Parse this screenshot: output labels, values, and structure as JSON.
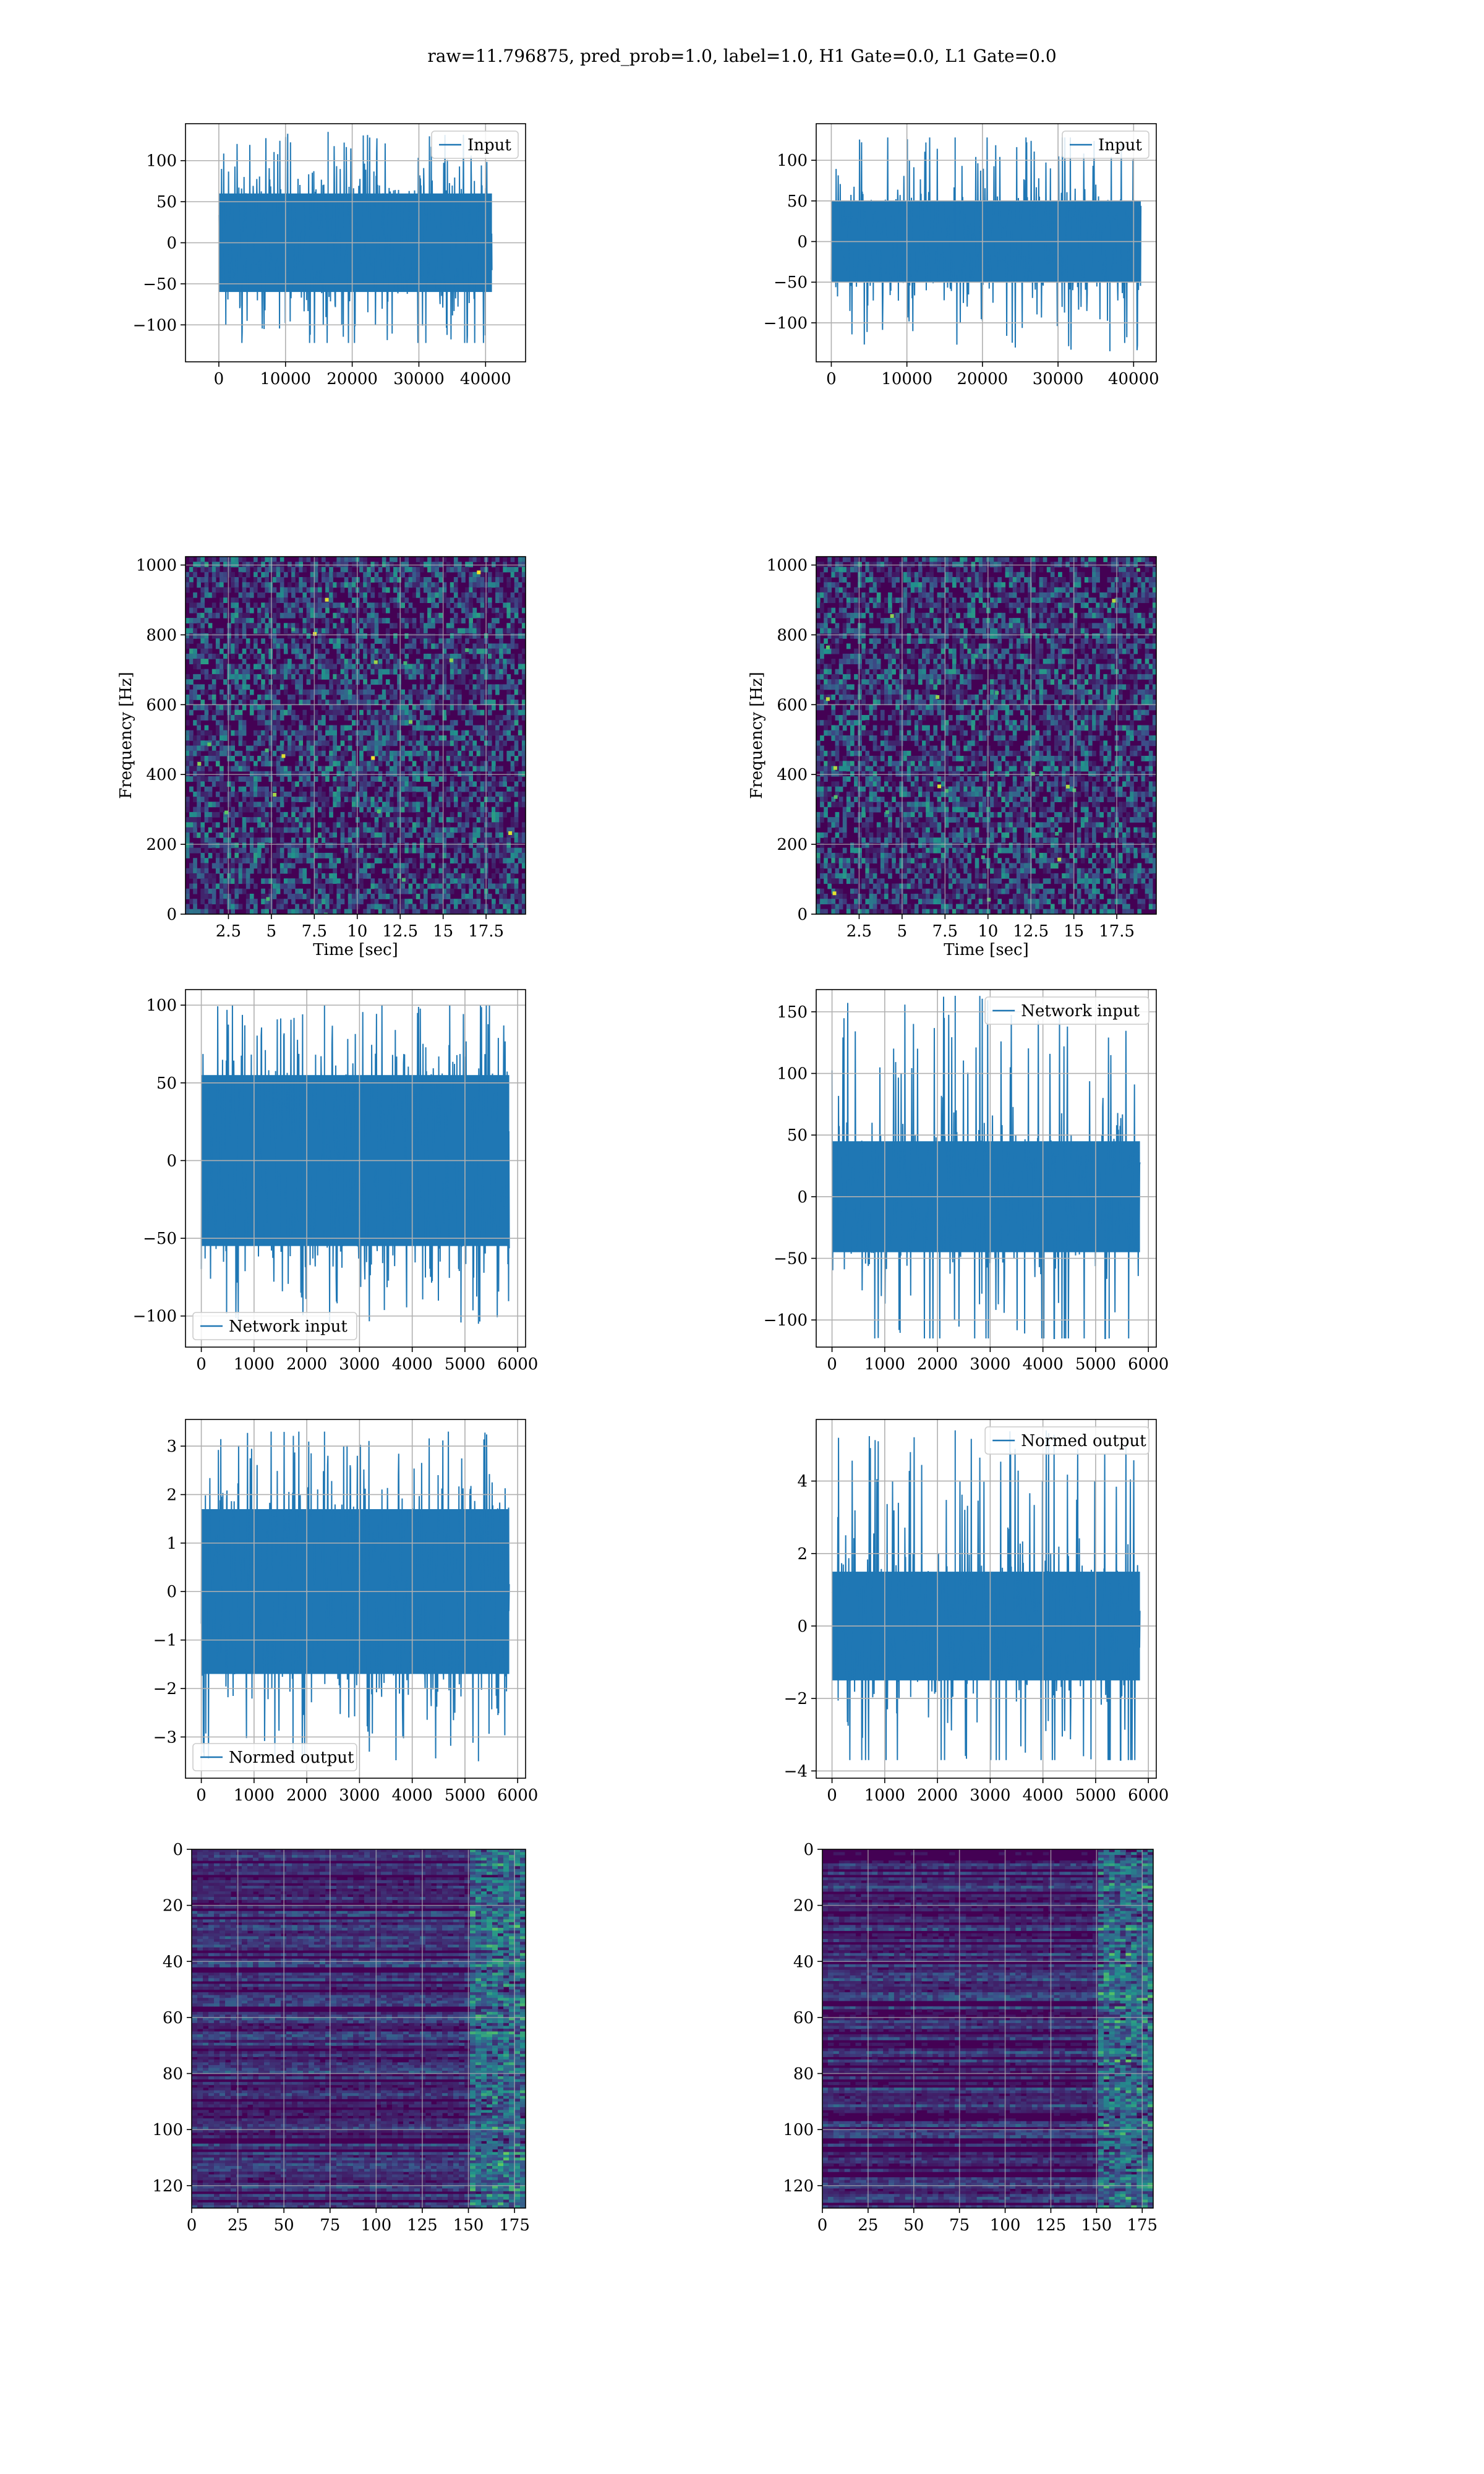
{
  "figure": {
    "title": "raw=11.796875, pred_prob=1.0, label=1.0, H1 Gate=0.0, L1 Gate=0.0"
  },
  "colors": {
    "series": "#1f77b4",
    "grid": "#b0b0b0",
    "viridis_low": "#440154",
    "viridis_high": "#fde725"
  },
  "chart_data": [
    {
      "type": "line",
      "panel": "r1c1",
      "xlim": [
        -5000,
        46000
      ],
      "ylim": [
        -145,
        145
      ],
      "xticks": [
        0,
        10000,
        20000,
        30000,
        40000
      ],
      "yticks": [
        -100,
        -50,
        0,
        50,
        100
      ],
      "legend": {
        "text": "Input",
        "loc": "upper right"
      },
      "series": [
        {
          "name": "Input",
          "x_range": [
            0,
            40960
          ],
          "y_core": [
            -60,
            60
          ],
          "y_peak": [
            -122,
            135
          ]
        }
      ]
    },
    {
      "type": "line",
      "panel": "r1c2",
      "xlim": [
        -2000,
        43000
      ],
      "ylim": [
        -148,
        145
      ],
      "xticks": [
        0,
        10000,
        20000,
        30000,
        40000
      ],
      "yticks": [
        -100,
        -50,
        0,
        50,
        100
      ],
      "legend": {
        "text": "Input",
        "loc": "upper right"
      },
      "series": [
        {
          "name": "Input",
          "x_range": [
            0,
            40960
          ],
          "y_core": [
            -50,
            50
          ],
          "y_peak": [
            -135,
            128
          ]
        }
      ]
    },
    {
      "type": "heatmap",
      "panel": "r2c1",
      "xlim": [
        0,
        19.8
      ],
      "ylim": [
        0,
        1024
      ],
      "xticks": [
        2.5,
        5.0,
        7.5,
        10.0,
        12.5,
        15.0,
        17.5
      ],
      "yticks": [
        0,
        200,
        400,
        600,
        800,
        1000
      ],
      "xlabel": "Time [sec]",
      "ylabel": "Frequency [Hz]"
    },
    {
      "type": "heatmap",
      "panel": "r2c2",
      "xlim": [
        0,
        19.8
      ],
      "ylim": [
        0,
        1024
      ],
      "xticks": [
        2.5,
        5.0,
        7.5,
        10.0,
        12.5,
        15.0,
        17.5
      ],
      "yticks": [
        0,
        200,
        400,
        600,
        800,
        1000
      ],
      "xlabel": "Time [sec]",
      "ylabel": "Frequency [Hz]"
    },
    {
      "type": "line",
      "panel": "r3c1",
      "xlim": [
        -300,
        6150
      ],
      "ylim": [
        -120,
        110
      ],
      "xticks": [
        0,
        1000,
        2000,
        3000,
        4000,
        5000,
        6000
      ],
      "yticks": [
        -100,
        -50,
        0,
        50,
        100
      ],
      "legend": {
        "text": "Network input",
        "loc": "lower left"
      },
      "series": [
        {
          "name": "Network input",
          "x_range": [
            0,
            5840
          ],
          "y_core": [
            -55,
            55
          ],
          "y_peak": [
            -105,
            100
          ]
        }
      ]
    },
    {
      "type": "line",
      "panel": "r3c2",
      "xlim": [
        -300,
        6150
      ],
      "ylim": [
        -122,
        168
      ],
      "xticks": [
        0,
        1000,
        2000,
        3000,
        4000,
        5000,
        6000
      ],
      "yticks": [
        -100,
        -50,
        0,
        50,
        100,
        150
      ],
      "legend": {
        "text": "Network input",
        "loc": "upper right"
      },
      "series": [
        {
          "name": "Network input",
          "x_range": [
            0,
            5840
          ],
          "y_core": [
            -45,
            45
          ],
          "y_peak": [
            -115,
            163
          ]
        }
      ]
    },
    {
      "type": "line",
      "panel": "r4c1",
      "xlim": [
        -300,
        6150
      ],
      "ylim": [
        -3.85,
        3.55
      ],
      "xticks": [
        0,
        1000,
        2000,
        3000,
        4000,
        5000,
        6000
      ],
      "yticks": [
        -3,
        -2,
        -1,
        0,
        1,
        2,
        3
      ],
      "legend": {
        "text": "Normed output",
        "loc": "lower left"
      },
      "series": [
        {
          "name": "Normed output",
          "x_range": [
            0,
            5840
          ],
          "y_core": [
            -1.7,
            1.7
          ],
          "y_peak": [
            -3.5,
            3.3
          ]
        }
      ]
    },
    {
      "type": "line",
      "panel": "r4c2",
      "xlim": [
        -300,
        6150
      ],
      "ylim": [
        -4.2,
        5.7
      ],
      "xticks": [
        0,
        1000,
        2000,
        3000,
        4000,
        5000,
        6000
      ],
      "yticks": [
        -4,
        -2,
        0,
        2,
        4
      ],
      "legend": {
        "text": "Normed output",
        "loc": "upper right"
      },
      "series": [
        {
          "name": "Normed output",
          "x_range": [
            0,
            5840
          ],
          "y_core": [
            -1.5,
            1.5
          ],
          "y_peak": [
            -3.7,
            5.4
          ]
        }
      ]
    },
    {
      "type": "heatmap",
      "panel": "r5c1",
      "xlim": [
        0,
        181
      ],
      "ylim": [
        128,
        0
      ],
      "xticks": [
        0,
        25,
        50,
        75,
        100,
        125,
        150,
        175
      ],
      "yticks": [
        0,
        20,
        40,
        60,
        80,
        100,
        120
      ]
    },
    {
      "type": "heatmap",
      "panel": "r5c2",
      "xlim": [
        0,
        181
      ],
      "ylim": [
        128,
        0
      ],
      "xticks": [
        0,
        25,
        50,
        75,
        100,
        125,
        150,
        175
      ],
      "yticks": [
        0,
        20,
        40,
        60,
        80,
        100,
        120
      ]
    }
  ]
}
